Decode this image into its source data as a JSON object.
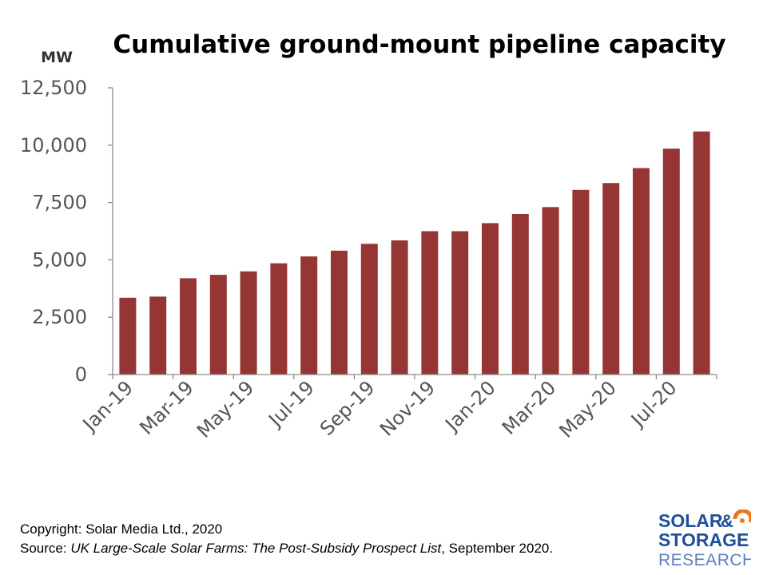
{
  "chart_data": {
    "type": "bar",
    "title": "Cumulative ground-mount pipeline capacity",
    "ylabel": "MW",
    "xlabel": "",
    "ylim": [
      0,
      12500
    ],
    "yticks": [
      "12,500",
      "10,000",
      "7,500",
      "5,000",
      "2,500",
      "0"
    ],
    "ytick_values": [
      12500,
      10000,
      7500,
      5000,
      2500,
      0
    ],
    "categories": [
      "Jan-19",
      "Feb-19",
      "Mar-19",
      "Apr-19",
      "May-19",
      "Jun-19",
      "Jul-19",
      "Aug-19",
      "Sep-19",
      "Oct-19",
      "Nov-19",
      "Dec-19",
      "Jan-20",
      "Feb-20",
      "Mar-20",
      "Apr-20",
      "May-20",
      "Jun-20",
      "Jul-20",
      "Aug-20"
    ],
    "xtick_labels": [
      "Jan-19",
      "Mar-19",
      "May-19",
      "Jul-19",
      "Sep-19",
      "Nov-19",
      "Jan-20",
      "Mar-20",
      "May-20",
      "Jul-20"
    ],
    "xtick_indices": [
      0,
      2,
      4,
      6,
      8,
      10,
      12,
      14,
      16,
      18
    ],
    "values": [
      3350,
      3400,
      4200,
      4350,
      4500,
      4850,
      5150,
      5400,
      5700,
      5850,
      6250,
      6250,
      6600,
      7000,
      7300,
      8050,
      8350,
      9000,
      9850,
      10600
    ],
    "grid": false,
    "legend": "none"
  },
  "colors": {
    "bar": "#963634",
    "axis": "#8c8c8c",
    "logo_orange": "#e87722",
    "logo_blue": "#1f4e9c"
  },
  "footer": {
    "copyright": "Copyright: Solar Media Ltd., 2020",
    "source_prefix": "Source: ",
    "source_title": "UK Large-Scale Solar Farms: The Post-Subsidy Prospect List",
    "source_suffix": ", September 2020."
  },
  "logo": {
    "line1": "SOLAR",
    "amp": "&",
    "line2": "STORAGE",
    "line3": "RESEARCH"
  }
}
